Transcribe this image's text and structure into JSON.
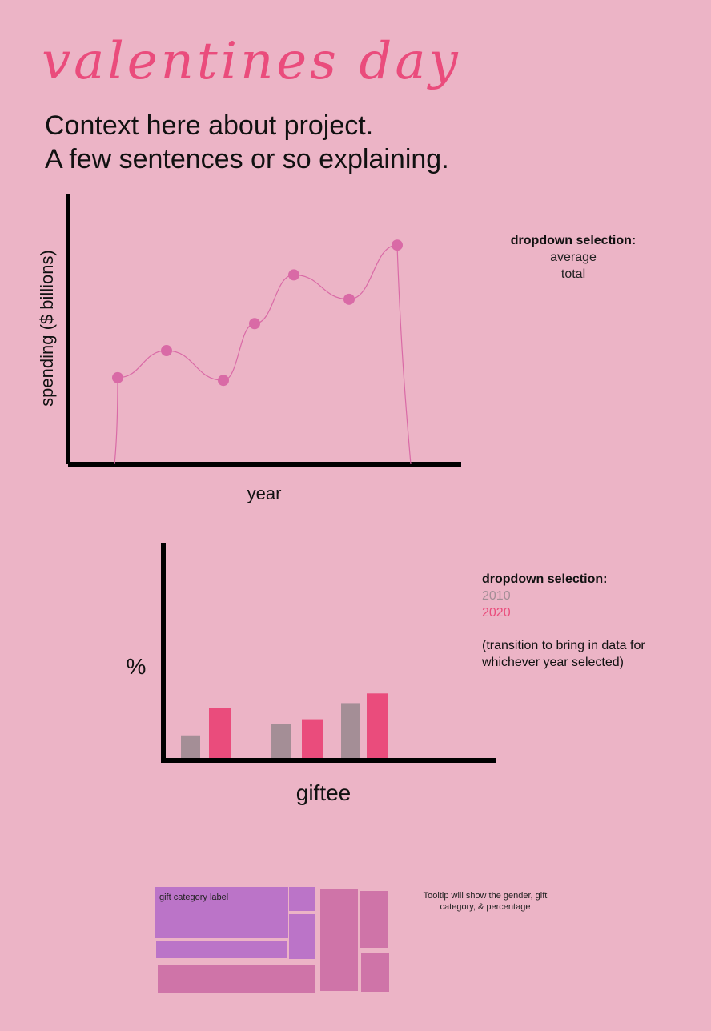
{
  "page": {
    "title": "valentines day",
    "context_lines": [
      "Context here about project.",
      "A few sentences or so explaining."
    ]
  },
  "line_panel": {
    "dropdown_label": "dropdown selection:",
    "options": [
      "average",
      "total"
    ]
  },
  "bar_panel": {
    "dropdown_label": "dropdown selection:",
    "options": [
      {
        "label": "2010",
        "color": "#a48e96"
      },
      {
        "label": "2020",
        "color": "#ea4c7c"
      }
    ],
    "note": "(transition to bring in data for whichever year selected)"
  },
  "treemap_panel": {
    "tooltip_note": "Tooltip will show the gender, gift category, & percentage"
  },
  "chart_data": [
    {
      "type": "line",
      "title": "",
      "xlabel": "year",
      "ylabel": "spending ($ billions)",
      "ylim": [
        0,
        10
      ],
      "grid": false,
      "color": "#d96aa6",
      "points": [
        {
          "x": 1,
          "y": 3.2
        },
        {
          "x": 2,
          "y": 4.2
        },
        {
          "x": 3,
          "y": 3.1
        },
        {
          "x": 4,
          "y": 5.2
        },
        {
          "x": 5,
          "y": 7.0
        },
        {
          "x": 6,
          "y": 6.1
        },
        {
          "x": 7,
          "y": 8.1
        }
      ]
    },
    {
      "type": "bar",
      "title": "",
      "xlabel": "giftee",
      "ylabel": "%",
      "ylim": [
        0,
        10
      ],
      "grid": false,
      "categories": [
        "",
        "",
        ""
      ],
      "series": [
        {
          "name": "2010",
          "color": "#a48e96",
          "values": [
            1.4,
            2.1,
            3.4
          ]
        },
        {
          "name": "2020",
          "color": "#ea4c7c",
          "values": [
            3.1,
            2.4,
            4.0
          ]
        }
      ]
    },
    {
      "type": "treemap",
      "title": "",
      "label": "gift category label",
      "groups": [
        {
          "color": "#bb74c8",
          "tiles": [
            30,
            2.5,
            4.5,
            10
          ]
        },
        {
          "color": "#cf74a8",
          "tiles": [
            16,
            9.5,
            8,
            4.5
          ]
        }
      ]
    }
  ]
}
